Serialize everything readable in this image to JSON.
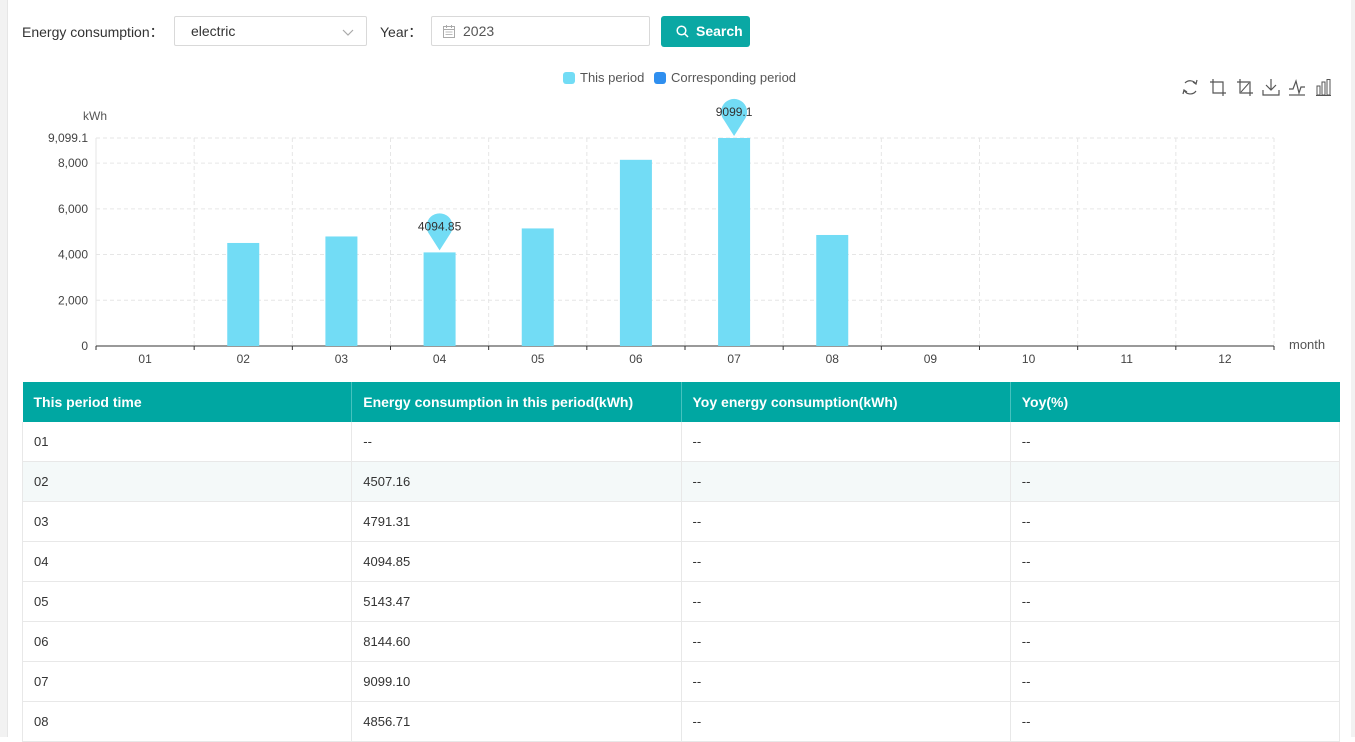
{
  "filters": {
    "energy_label": "Energy consumption：",
    "energy_value": "electric",
    "year_label": "Year：",
    "year_value": "2023",
    "search_label": "Search"
  },
  "icons": {
    "dropdown": "chevron-down-icon",
    "calendar": "calendar-icon",
    "search": "search-icon",
    "toolbox": [
      "refresh-icon",
      "zoom-icon",
      "zoom-reset-icon",
      "download-icon",
      "line-chart-icon",
      "bar-chart-icon"
    ]
  },
  "colors": {
    "accent": "#00a7a2",
    "this_period": "#72dcf5",
    "corresponding_period": "#2f8fef"
  },
  "chart_data": {
    "type": "bar",
    "ylabel": "kWh",
    "xlabel": "month",
    "categories": [
      "01",
      "02",
      "03",
      "04",
      "05",
      "06",
      "07",
      "08",
      "09",
      "10",
      "11",
      "12"
    ],
    "series": [
      {
        "name": "This period",
        "values": [
          null,
          4507.16,
          4791.31,
          4094.85,
          5143.47,
          8144.6,
          9099.1,
          4856.71,
          null,
          null,
          null,
          null
        ]
      },
      {
        "name": "Corresponding period",
        "values": [
          null,
          null,
          null,
          null,
          null,
          null,
          null,
          null,
          null,
          null,
          null,
          null
        ]
      }
    ],
    "ylim": [
      0,
      9099.1
    ],
    "yticks": [
      "0",
      "2,000",
      "4,000",
      "6,000",
      "8,000",
      "9,099.1"
    ],
    "ytick_values": [
      0,
      2000,
      4000,
      6000,
      8000,
      9099.1
    ],
    "markers": [
      {
        "label": "4094.85",
        "category": "04",
        "value": 4094.85
      },
      {
        "label": "9099.1",
        "category": "07",
        "value": 9099.1
      }
    ],
    "legend_position": "top-center",
    "grid": true
  },
  "table": {
    "headers": [
      "This period time",
      "Energy consumption in this period(kWh)",
      "Yoy energy consumption(kWh)",
      "Yoy(%)"
    ],
    "rows": [
      [
        "01",
        "--",
        "--",
        "--"
      ],
      [
        "02",
        "4507.16",
        "--",
        "--"
      ],
      [
        "03",
        "4791.31",
        "--",
        "--"
      ],
      [
        "04",
        "4094.85",
        "--",
        "--"
      ],
      [
        "05",
        "5143.47",
        "--",
        "--"
      ],
      [
        "06",
        "8144.60",
        "--",
        "--"
      ],
      [
        "07",
        "9099.10",
        "--",
        "--"
      ],
      [
        "08",
        "4856.71",
        "--",
        "--"
      ]
    ]
  }
}
